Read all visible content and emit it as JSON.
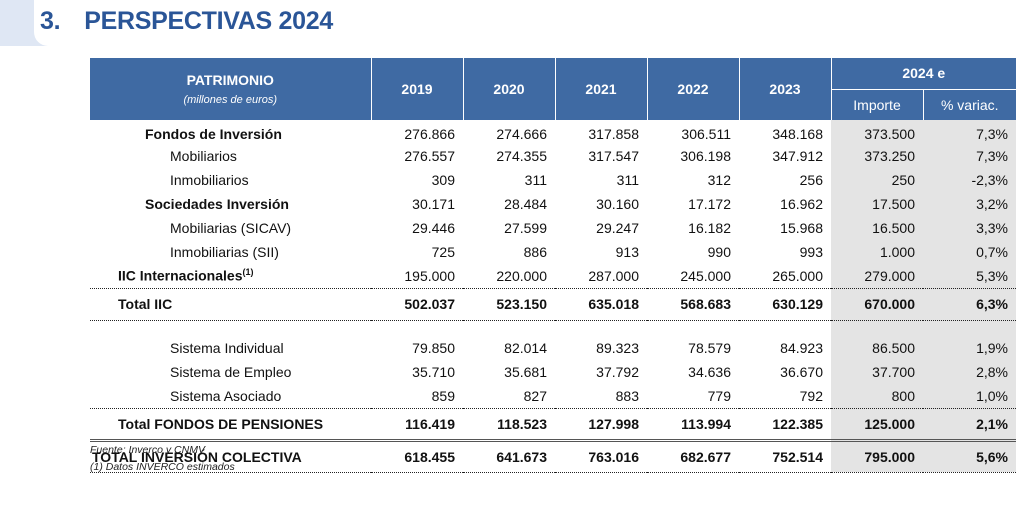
{
  "section": {
    "number": "3.",
    "title": "PERSPECTIVAS 2024"
  },
  "table": {
    "header": {
      "patrimonio": "PATRIMONIO",
      "units": "(millones de euros)",
      "years": [
        "2019",
        "2020",
        "2021",
        "2022",
        "2023"
      ],
      "forecast": "2024 e",
      "importe": "Importe",
      "variac": "% variac."
    },
    "rows": {
      "fondos_inversion": {
        "label": "Fondos de Inversión",
        "values": [
          "276.866",
          "274.666",
          "317.858",
          "306.511",
          "348.168",
          "373.500",
          "7,3%"
        ]
      },
      "mobiliarios": {
        "label": "Mobiliarios",
        "values": [
          "276.557",
          "274.355",
          "317.547",
          "306.198",
          "347.912",
          "373.250",
          "7,3%"
        ]
      },
      "inmobiliarios": {
        "label": "Inmobiliarios",
        "values": [
          "309",
          "311",
          "311",
          "312",
          "256",
          "250",
          "-2,3%"
        ]
      },
      "sociedades_inversion": {
        "label": "Sociedades Inversión",
        "values": [
          "30.171",
          "28.484",
          "30.160",
          "17.172",
          "16.962",
          "17.500",
          "3,2%"
        ]
      },
      "sicav": {
        "label": "Mobiliarias (SICAV)",
        "values": [
          "29.446",
          "27.599",
          "29.247",
          "16.182",
          "15.968",
          "16.500",
          "3,3%"
        ]
      },
      "sii": {
        "label": "Inmobiliarias (SII)",
        "values": [
          "725",
          "886",
          "913",
          "990",
          "993",
          "1.000",
          "0,7%"
        ]
      },
      "iic_internacionales": {
        "label": "IIC Internacionales",
        "footnote": "(1)",
        "values": [
          "195.000",
          "220.000",
          "287.000",
          "245.000",
          "265.000",
          "279.000",
          "5,3%"
        ]
      },
      "total_iic": {
        "label": "Total IIC",
        "values": [
          "502.037",
          "523.150",
          "635.018",
          "568.683",
          "630.129",
          "670.000",
          "6,3%"
        ]
      },
      "sistema_individual": {
        "label": "Sistema Individual",
        "values": [
          "79.850",
          "82.014",
          "89.323",
          "78.579",
          "84.923",
          "86.500",
          "1,9%"
        ]
      },
      "sistema_empleo": {
        "label": "Sistema de Empleo",
        "values": [
          "35.710",
          "35.681",
          "37.792",
          "34.636",
          "36.670",
          "37.700",
          "2,8%"
        ]
      },
      "sistema_asociado": {
        "label": "Sistema Asociado",
        "values": [
          "859",
          "827",
          "883",
          "779",
          "792",
          "800",
          "1,0%"
        ]
      },
      "total_pensiones": {
        "label": "Total FONDOS DE PENSIONES",
        "values": [
          "116.419",
          "118.523",
          "127.998",
          "113.994",
          "122.385",
          "125.000",
          "2,1%"
        ]
      },
      "total_inversion": {
        "label": "TOTAL INVERSIÓN COLECTIVA",
        "values": [
          "618.455",
          "641.673",
          "763.016",
          "682.677",
          "752.514",
          "795.000",
          "5,6%"
        ]
      }
    }
  },
  "notes": {
    "source": "Fuente: Inverco y CNMV",
    "footnote": "(1) Datos INVERCO estimados"
  }
}
